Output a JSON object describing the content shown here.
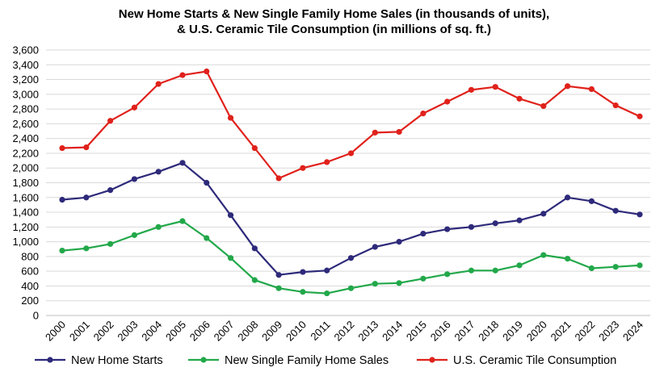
{
  "chart_data": {
    "type": "line",
    "title_lines": [
      "New Home Starts & New Single Family Home Sales (in thousands of units),",
      "& U.S. Ceramic Tile Consumption (in millions of sq. ft.)"
    ],
    "xlabel": "",
    "ylabel": "",
    "ylim": [
      0,
      3600
    ],
    "y_ticks": [
      0,
      200,
      400,
      600,
      800,
      1000,
      1200,
      1400,
      1600,
      1800,
      2000,
      2200,
      2400,
      2600,
      2800,
      3000,
      3200,
      3400,
      3600
    ],
    "y_tick_labels": [
      "0",
      "200",
      "400",
      "600",
      "800",
      "1,000",
      "1,200",
      "1,400",
      "1,600",
      "1,800",
      "2,000",
      "2,200",
      "2,400",
      "2,600",
      "2,800",
      "3,000",
      "3,200",
      "3,400",
      "3,600"
    ],
    "grid": true,
    "legend_position": "bottom",
    "categories": [
      "2000",
      "2001",
      "2002",
      "2003",
      "2004",
      "2005",
      "2006",
      "2007",
      "2008",
      "2009",
      "2010",
      "2011",
      "2012",
      "2013",
      "2014",
      "2015",
      "2016",
      "2017",
      "2018",
      "2019",
      "2020",
      "2021",
      "2022",
      "2023",
      "2024"
    ],
    "series": [
      {
        "name": "New Home Starts",
        "color": "#2e2a7a",
        "values": [
          1570,
          1600,
          1700,
          1850,
          1950,
          2070,
          1800,
          1360,
          910,
          550,
          590,
          610,
          780,
          930,
          1000,
          1110,
          1170,
          1200,
          1250,
          1290,
          1380,
          1600,
          1550,
          1420,
          1370
        ]
      },
      {
        "name": "New Single Family Home Sales",
        "color": "#22a84a",
        "values": [
          880,
          910,
          970,
          1090,
          1200,
          1280,
          1050,
          780,
          480,
          370,
          320,
          300,
          370,
          430,
          440,
          500,
          560,
          610,
          610,
          680,
          820,
          770,
          640,
          660,
          680
        ]
      },
      {
        "name": "U.S. Ceramic Tile Consumption",
        "color": "#e0211b",
        "values": [
          2270,
          2280,
          2640,
          2820,
          3140,
          3260,
          3310,
          2680,
          2270,
          1860,
          2000,
          2080,
          2200,
          2480,
          2490,
          2740,
          2900,
          3060,
          3100,
          2940,
          2840,
          3110,
          3070,
          2850,
          2700
        ]
      }
    ]
  }
}
